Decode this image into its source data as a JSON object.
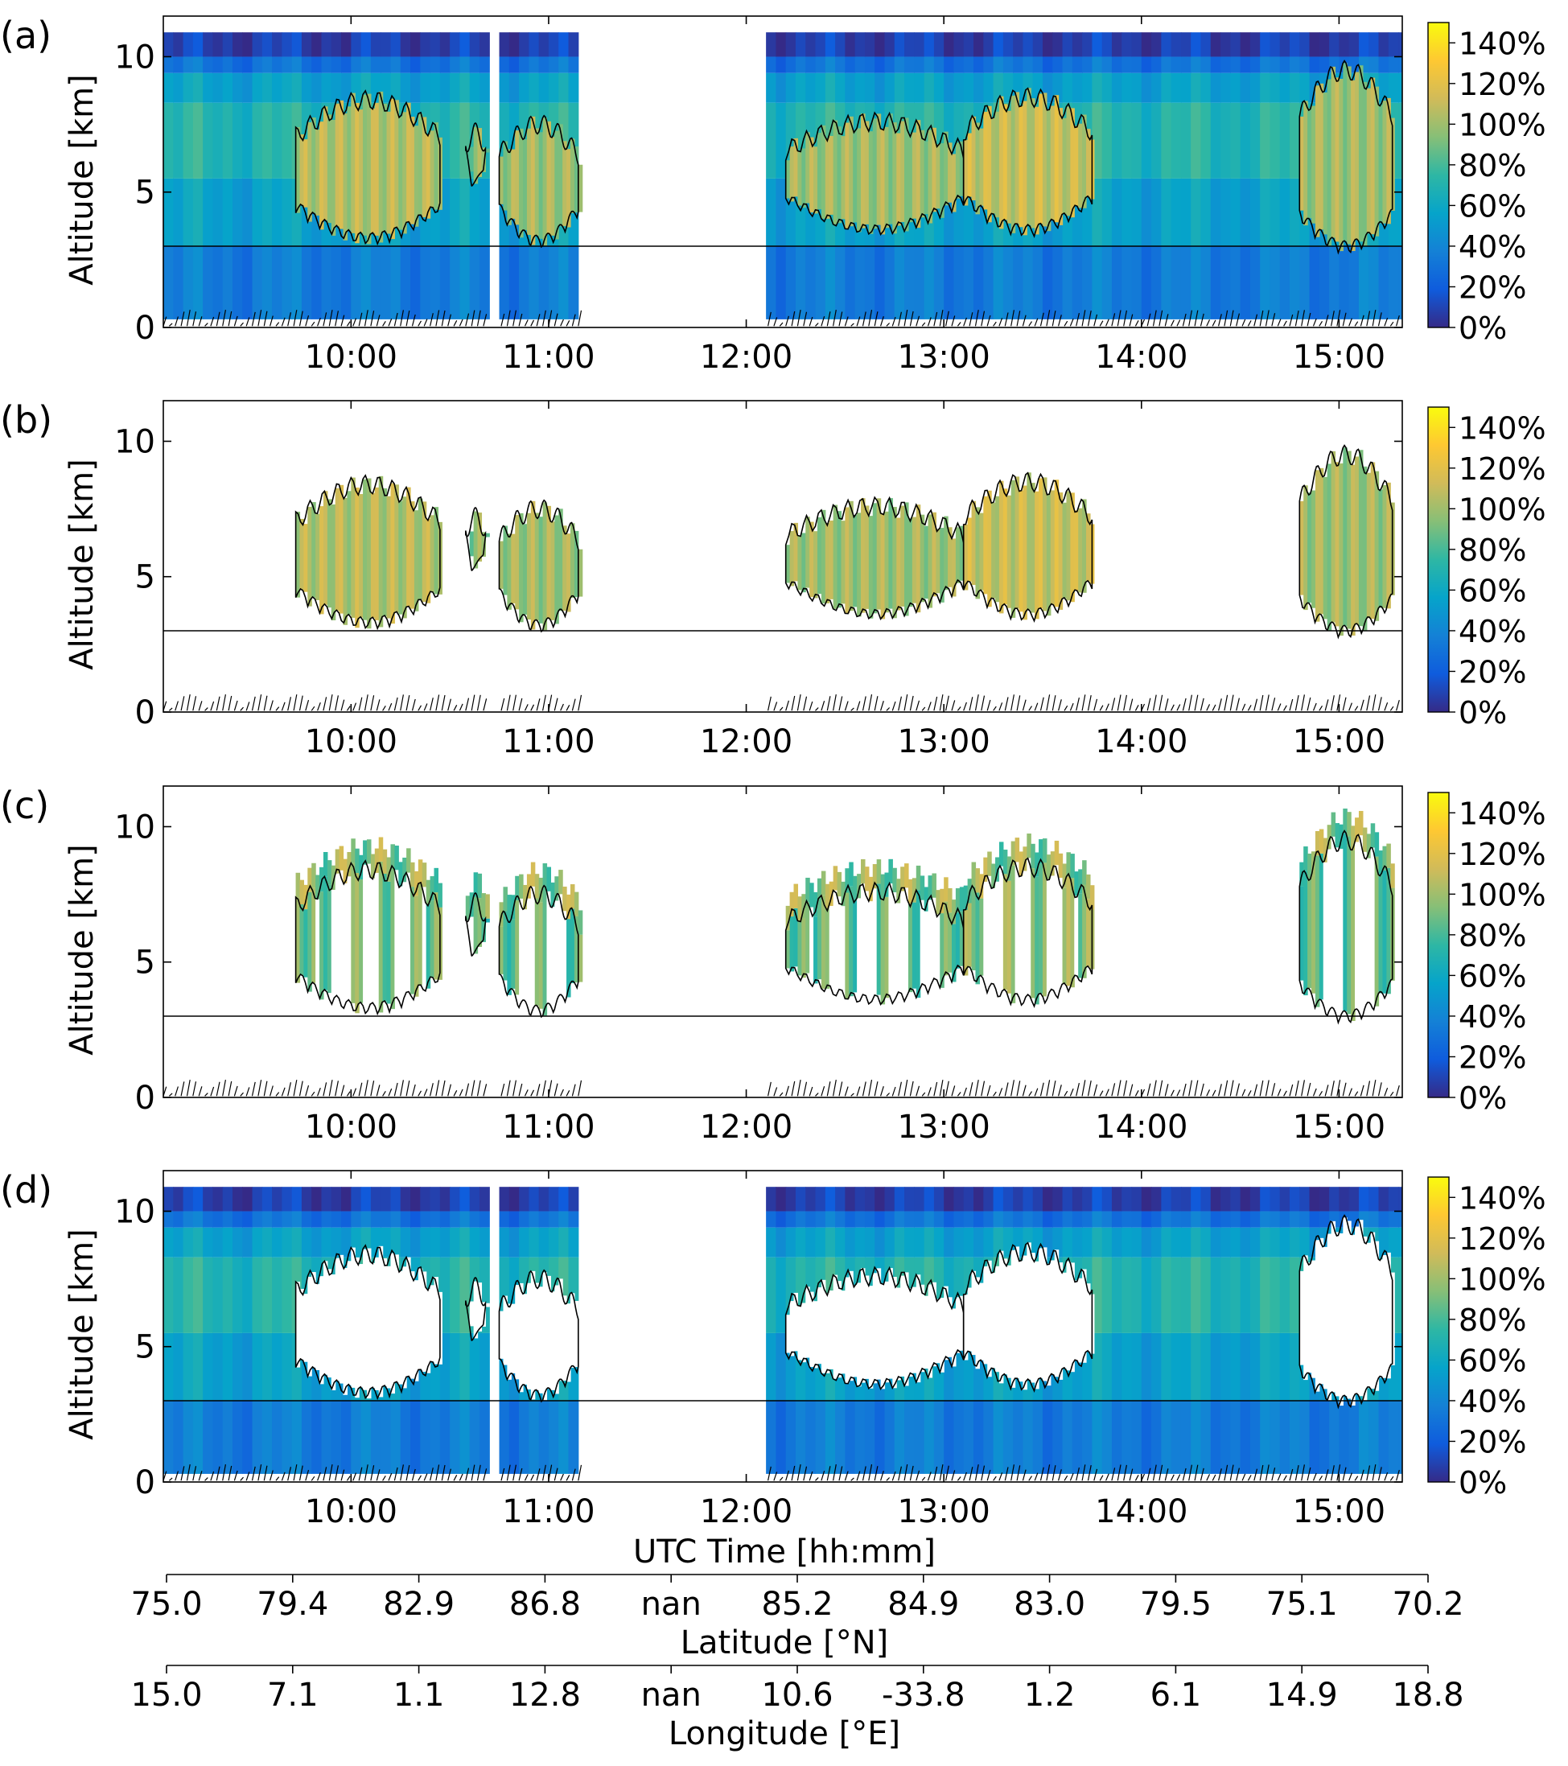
{
  "chart_data": {
    "type": "heatmap",
    "panels": [
      {
        "label": "(a)",
        "masking": "full"
      },
      {
        "label": "(b)",
        "masking": "cloud-only"
      },
      {
        "label": "(c)",
        "masking": "cloud-edge"
      },
      {
        "label": "(d)",
        "masking": "clear-sky"
      }
    ],
    "ylabel": "Altitude [km]",
    "ylim": [
      0,
      11.5
    ],
    "yticks": [
      0,
      5,
      10
    ],
    "ytick_labels": [
      "0",
      "5",
      "10"
    ],
    "xlim_hours": [
      9.05,
      15.32
    ],
    "xticks_hours": [
      10,
      11,
      12,
      13,
      14,
      15
    ],
    "xtick_labels": [
      "10:00",
      "11:00",
      "12:00",
      "13:00",
      "14:00",
      "15:00"
    ],
    "reference_line_km": 3.0,
    "colorbar": {
      "range": [
        0,
        150
      ],
      "ticks": [
        0,
        20,
        40,
        60,
        80,
        100,
        120,
        140
      ],
      "tick_labels": [
        "0%",
        "20%",
        "40%",
        "60%",
        "80%",
        "100%",
        "120%",
        "140%"
      ],
      "colormap_stops": [
        "#352a87",
        "#0f5cdd",
        "#1481d6",
        "#06a4ca",
        "#2eb7a4",
        "#87bf77",
        "#d1bb59",
        "#fec832",
        "#f9fb0e"
      ]
    },
    "xlabel": "UTC Time [hh:mm]",
    "secondary_axes": [
      {
        "label": "Latitude [°N]",
        "tick_labels": [
          "75.0",
          "79.4",
          "82.9",
          "86.8",
          "nan",
          "85.2",
          "84.9",
          "83.0",
          "79.5",
          "75.1",
          "70.2"
        ]
      },
      {
        "label": "Longitude [°E]",
        "tick_labels": [
          "15.0",
          "7.1",
          "1.1",
          "12.8",
          "nan",
          "10.6",
          "-33.8",
          "1.2",
          "6.1",
          "14.9",
          "18.8"
        ]
      }
    ],
    "data_gap_hours": [
      [
        10.69,
        10.73
      ],
      [
        11.17,
        12.1
      ]
    ],
    "cloud_segments": [
      {
        "start": 9.72,
        "end": 10.45,
        "base_km": 3.0,
        "top_km": 8.4,
        "value_pct": 105
      },
      {
        "start": 10.58,
        "end": 10.68,
        "base_km": 5.0,
        "top_km": 7.2,
        "value_pct": 95
      },
      {
        "start": 10.75,
        "end": 11.15,
        "base_km": 2.9,
        "top_km": 7.5,
        "value_pct": 100
      },
      {
        "start": 12.2,
        "end": 13.1,
        "base_km": 3.3,
        "top_km": 7.6,
        "value_pct": 100
      },
      {
        "start": 13.1,
        "end": 13.75,
        "base_km": 3.3,
        "top_km": 8.5,
        "value_pct": 110
      },
      {
        "start": 14.8,
        "end": 15.27,
        "base_km": 2.7,
        "top_km": 9.5,
        "value_pct": 100
      }
    ]
  }
}
